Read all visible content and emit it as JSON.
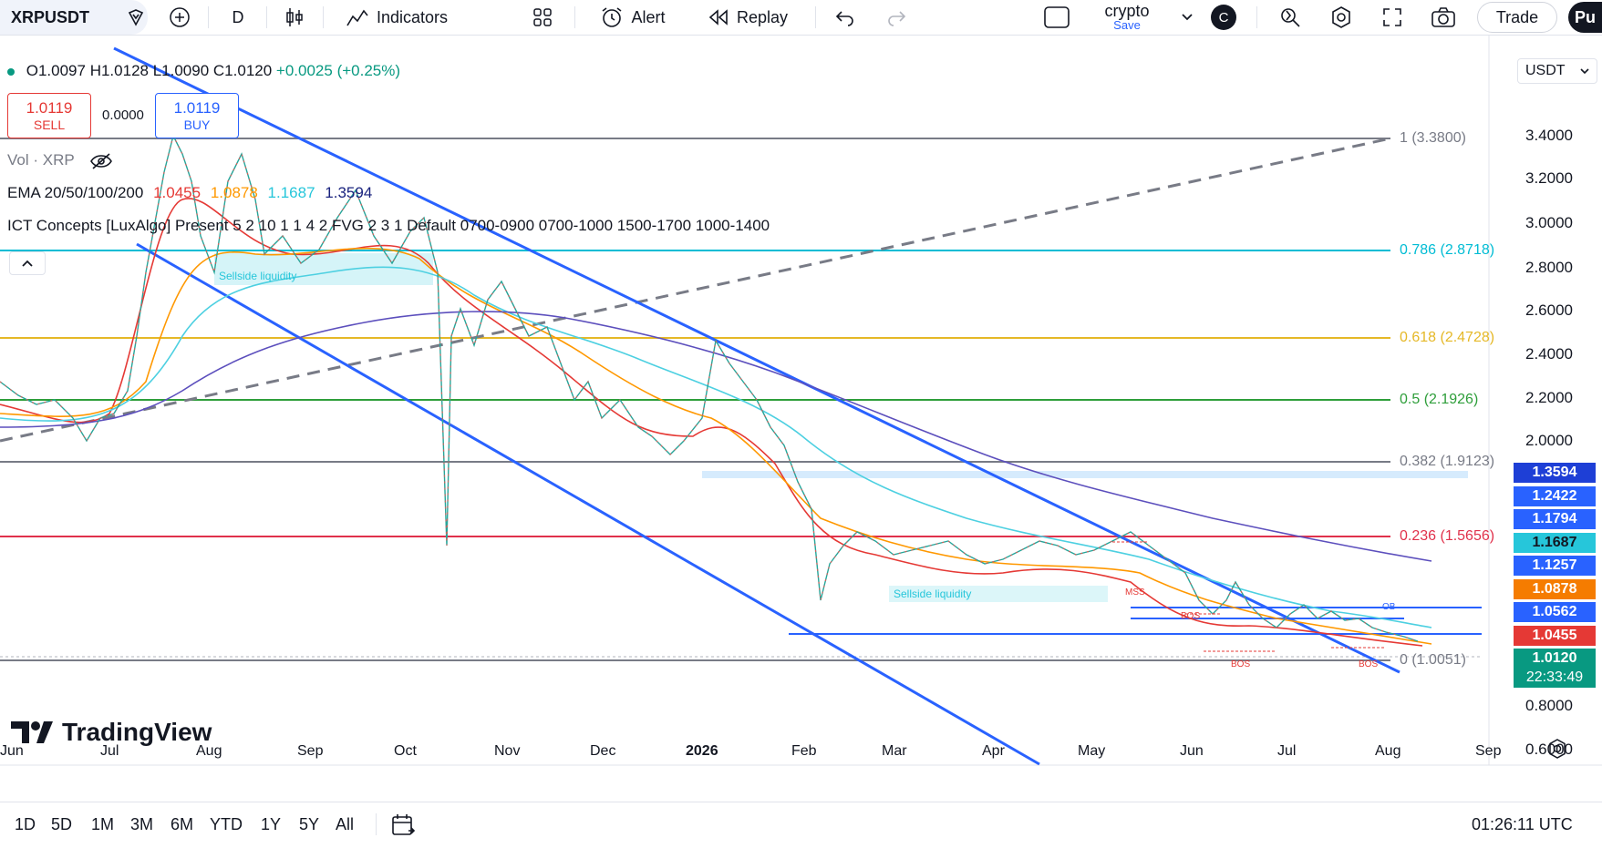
{
  "toolbar": {
    "symbol": "XRPUSDT",
    "interval": "D",
    "indicators_label": "Indicators",
    "alert_label": "Alert",
    "replay_label": "Replay",
    "layout_name": "crypto",
    "layout_save": "Save",
    "layout_letter": "C",
    "trade_label": "Trade",
    "publish_label": "Pu"
  },
  "legend": {
    "ohlc": {
      "o": "O1.0097",
      "h": "H1.0128",
      "l": "L1.0090",
      "c": "C1.0120",
      "chg": "+0.0025 (+0.25%)"
    },
    "sell_price": "1.0119",
    "sell_label": "SELL",
    "spread": "0.0000",
    "buy_price": "1.0119",
    "buy_label": "BUY",
    "vol": "Vol · XRP",
    "ema_title": "EMA 20/50/100/200",
    "ema_values": [
      "1.0455",
      "1.0878",
      "1.1687",
      "1.3594"
    ],
    "ict": "ICT Concepts [LuxAlgo] Present 5 2 10 1 1 4 2 FVG 2 3 1 Default 0700-0900 0700-1000 1500-1700 1000-1400"
  },
  "currency": "USDT",
  "y_axis": [
    "3.4000",
    "3.2000",
    "3.0000",
    "2.8000",
    "2.6000",
    "2.4000",
    "2.2000",
    "2.0000",
    "0.8000",
    "0.6000"
  ],
  "x_axis": [
    "Jun",
    "Jul",
    "Aug",
    "Sep",
    "Oct",
    "Nov",
    "Dec",
    "2026",
    "Feb",
    "Mar",
    "Apr",
    "May",
    "Jun",
    "Jul",
    "Aug",
    "Sep"
  ],
  "fib_levels": [
    {
      "label": "1 (3.3800)",
      "color": "#787b86"
    },
    {
      "label": "0.786 (2.8718)",
      "color": "#00bcd4"
    },
    {
      "label": "0.618 (2.4728)",
      "color": "#e5b827"
    },
    {
      "label": "0.5 (2.1926)",
      "color": "#2e9e3a"
    },
    {
      "label": "0.382 (1.9123)",
      "color": "#787b86"
    },
    {
      "label": "0.236 (1.5656)",
      "color": "#e0314b"
    },
    {
      "label": "0 (1.0051)",
      "color": "#787b86"
    }
  ],
  "price_labels": [
    {
      "value": "1.3594",
      "color": "#1e3fd6"
    },
    {
      "value": "1.2422",
      "color": "#2962ff"
    },
    {
      "value": "1.1794",
      "color": "#2962ff"
    },
    {
      "value": "1.1687",
      "color": "#26c6da"
    },
    {
      "value": "1.1257",
      "color": "#2962ff"
    },
    {
      "value": "1.0878",
      "color": "#f57c00"
    },
    {
      "value": "1.0562",
      "color": "#2962ff"
    },
    {
      "value": "1.0455",
      "color": "#e53935"
    },
    {
      "value": "1.0120",
      "color": "#089981"
    },
    {
      "value": "22:33:49",
      "color": "#089981"
    }
  ],
  "annotations": {
    "sellside1": "Sellside liquidity",
    "sellside2": "Sellside liquidity",
    "mss": "MSS",
    "ob": "OB",
    "bos1": "BOS",
    "bos2": "BOS",
    "bos3": "BOS"
  },
  "watermark": "TradingView",
  "ranges": [
    "1D",
    "5D",
    "1M",
    "3M",
    "6M",
    "YTD",
    "1Y",
    "5Y",
    "All"
  ],
  "clock": "01:26:11 UTC"
}
